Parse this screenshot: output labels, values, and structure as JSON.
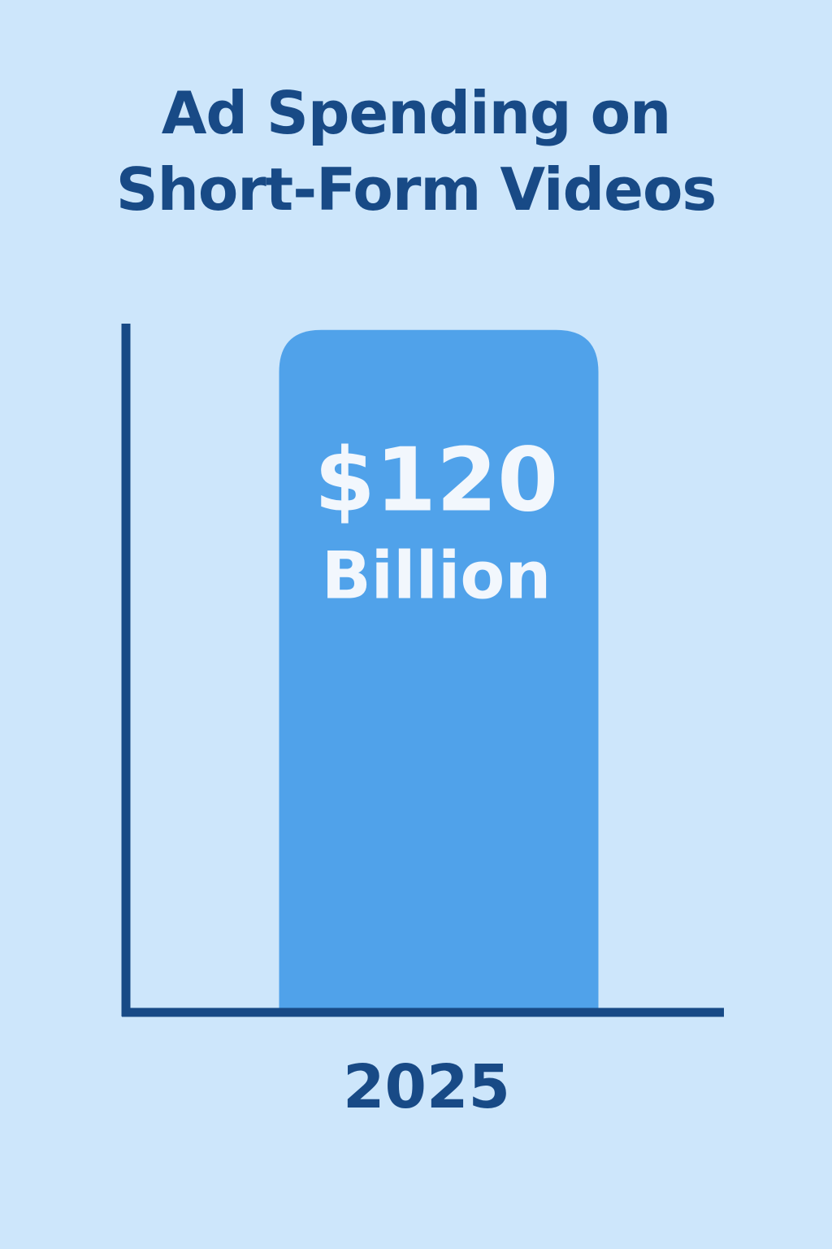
{
  "colors": {
    "background": "#cde6fb",
    "axis": "#184a86",
    "bar": "#50a2ea",
    "title": "#184a86",
    "bar_label": "#f2f7fd"
  },
  "chart_data": {
    "type": "bar",
    "title_lines": [
      "Ad Spending on",
      "Short-Form Videos"
    ],
    "categories": [
      "2025"
    ],
    "values": [
      120
    ],
    "value_unit": "Billion USD",
    "data_labels": [
      [
        "$120",
        "Billion"
      ]
    ],
    "xlabel": "",
    "ylabel": "",
    "ylim": [
      0,
      126
    ],
    "grid": false,
    "legend": "none"
  }
}
